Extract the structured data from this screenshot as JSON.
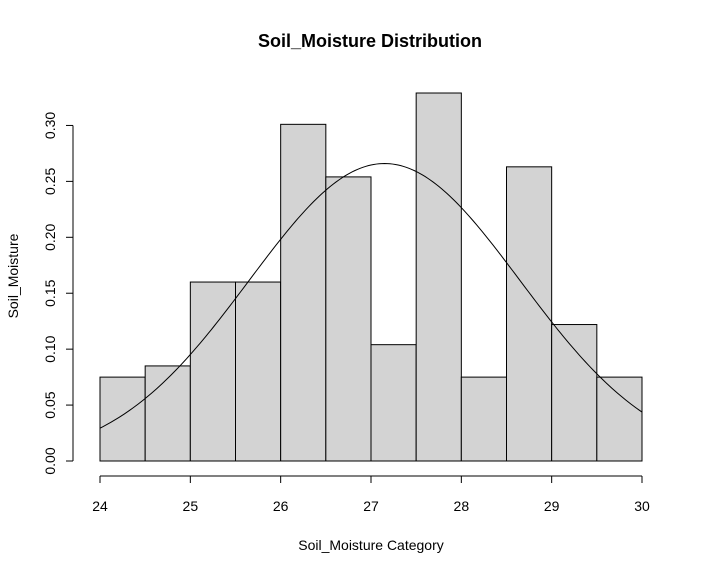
{
  "chart_data": {
    "type": "bar",
    "title": "Soil_Moisture Distribution",
    "xlabel": "Soil_Moisture Category",
    "ylabel": "Soil_Moisture",
    "xlim": [
      24,
      30
    ],
    "ylim": [
      0,
      0.33
    ],
    "x_ticks": [
      24,
      25,
      26,
      27,
      28,
      29,
      30
    ],
    "x_tick_labels": [
      "24",
      "25",
      "26",
      "27",
      "28",
      "29",
      "30"
    ],
    "y_ticks": [
      0.0,
      0.05,
      0.1,
      0.15,
      0.2,
      0.25,
      0.3
    ],
    "y_tick_labels": [
      "0.00",
      "0.05",
      "0.10",
      "0.15",
      "0.20",
      "0.25",
      "0.30"
    ],
    "bins": [
      {
        "start": 24.0,
        "end": 24.5,
        "density": 0.075
      },
      {
        "start": 24.5,
        "end": 25.0,
        "density": 0.085
      },
      {
        "start": 25.0,
        "end": 25.5,
        "density": 0.16
      },
      {
        "start": 25.5,
        "end": 26.0,
        "density": 0.16
      },
      {
        "start": 26.0,
        "end": 26.5,
        "density": 0.301
      },
      {
        "start": 26.5,
        "end": 27.0,
        "density": 0.254
      },
      {
        "start": 27.0,
        "end": 27.5,
        "density": 0.104
      },
      {
        "start": 27.5,
        "end": 28.0,
        "density": 0.329
      },
      {
        "start": 28.0,
        "end": 28.5,
        "density": 0.075
      },
      {
        "start": 28.5,
        "end": 29.0,
        "density": 0.263
      },
      {
        "start": 29.0,
        "end": 29.5,
        "density": 0.122
      },
      {
        "start": 29.5,
        "end": 30.0,
        "density": 0.075
      }
    ],
    "density_curve": {
      "type": "normal",
      "mean": 27.15,
      "sd": 1.5
    },
    "bar_fill": "#d3d3d3",
    "bar_stroke": "#000000",
    "curve_color": "#000000",
    "grid": false,
    "legend": "none"
  }
}
